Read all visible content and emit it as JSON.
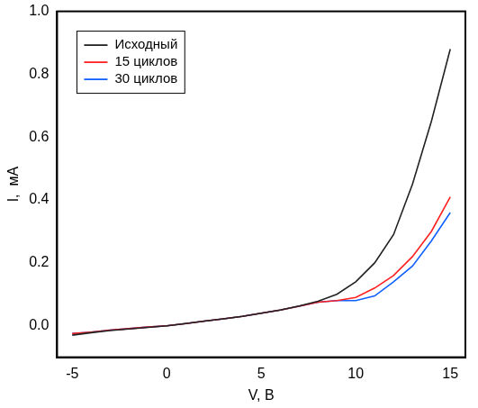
{
  "chart_data": {
    "type": "line",
    "x_label": "V, B",
    "y_label": "I,  мА",
    "xlim": [
      -5.8,
      15.8
    ],
    "xticks": [
      -5,
      0,
      5,
      10,
      15
    ],
    "ylim": [
      -0.1,
      1.0
    ],
    "yticks": [
      {
        "value": 0,
        "label": "0.0"
      },
      {
        "value": 0.2,
        "label": "0.2"
      },
      {
        "value": 0.4,
        "label": "0.4"
      },
      {
        "value": 0.6,
        "label": "0.6"
      },
      {
        "value": 0.8,
        "label": "0.8"
      },
      {
        "value": 1.0,
        "label": "1.0"
      }
    ],
    "grid": false,
    "legend": "upper left",
    "x": [
      -5,
      -4,
      -3,
      -2,
      -1,
      0,
      1,
      2,
      3,
      4,
      5,
      6,
      7,
      8,
      9,
      10,
      11,
      12,
      13,
      14,
      15
    ],
    "series": [
      {
        "name": "Исходный",
        "color": "#222222",
        "values": [
          -0.03,
          -0.022,
          -0.015,
          -0.01,
          -0.005,
          0,
          0.007,
          0.015,
          0.022,
          0.03,
          0.04,
          0.05,
          0.063,
          0.078,
          0.1,
          0.14,
          0.2,
          0.29,
          0.45,
          0.65,
          0.88
        ]
      },
      {
        "name": "15 циклов",
        "color": "#ff2020",
        "values": [
          -0.025,
          -0.02,
          -0.014,
          -0.009,
          -0.004,
          0,
          0.007,
          0.015,
          0.022,
          0.03,
          0.04,
          0.05,
          0.062,
          0.075,
          0.08,
          0.09,
          0.12,
          0.16,
          0.22,
          0.3,
          0.41
        ]
      },
      {
        "name": "30 циклов",
        "color": "#1060ff",
        "values": [
          -0.025,
          -0.02,
          -0.014,
          -0.009,
          -0.004,
          0,
          0.007,
          0.015,
          0.022,
          0.03,
          0.04,
          0.05,
          0.062,
          0.075,
          0.08,
          0.08,
          0.095,
          0.14,
          0.19,
          0.27,
          0.36
        ]
      }
    ]
  }
}
